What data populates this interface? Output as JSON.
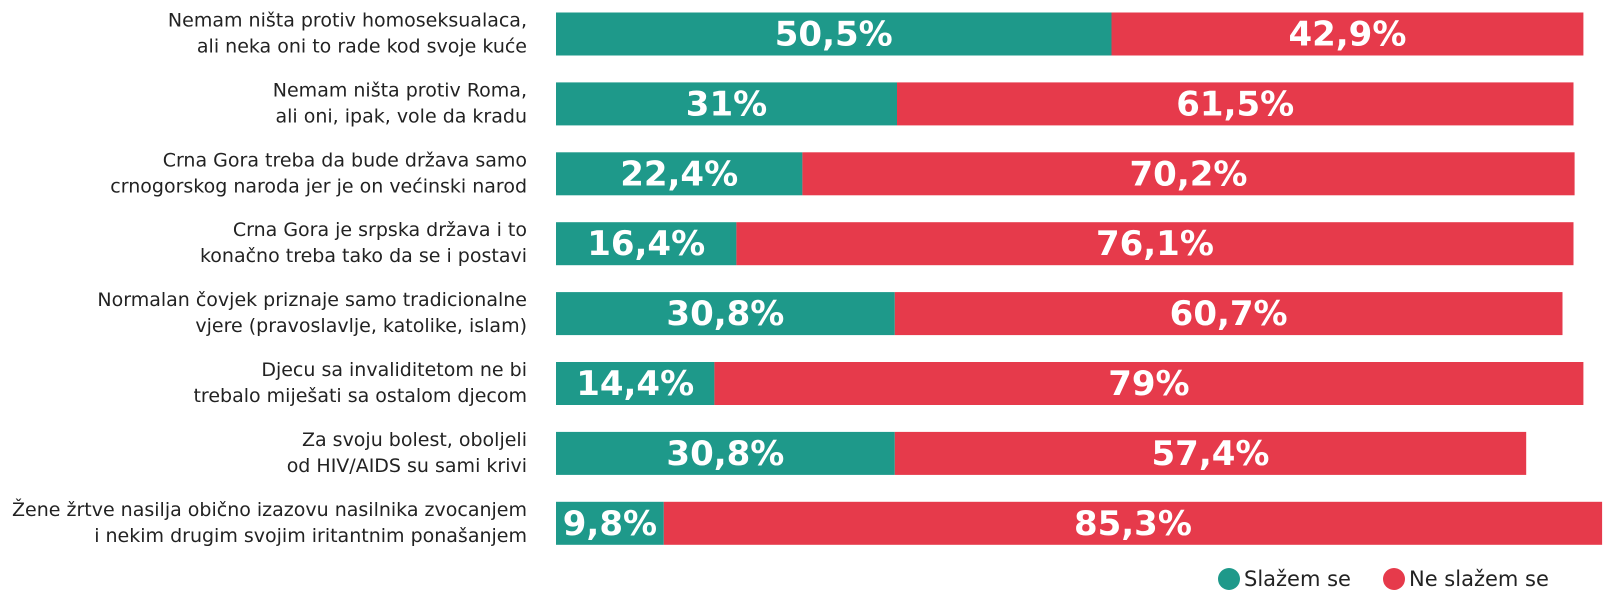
{
  "chart_data": {
    "type": "stacked-bar-horizontal",
    "categories": [
      [
        "Nemam ništa protiv homoseksualaca,",
        "ali neka oni to rade kod svoje kuće"
      ],
      [
        "Nemam ništa protiv Roma,",
        "ali oni, ipak, vole da kradu"
      ],
      [
        "Crna Gora treba da bude država samo",
        "crnogorskog naroda jer je on većinski narod"
      ],
      [
        "Crna Gora je srpska država i to",
        "konačno treba tako da se i postavi"
      ],
      [
        "Normalan čovjek priznaje samo tradicionalne",
        "vjere (pravoslavlje, katolike, islam)"
      ],
      [
        "Djecu sa invaliditetom ne bi",
        "trebalo miješati sa ostalom djecom"
      ],
      [
        "Za svoju bolest, oboljeli",
        "od HIV/AIDS su sami krivi"
      ],
      [
        "Žene žrtve nasilja obično izazovu nasilnika zvocanjem",
        "i nekim drugim svojim iritantnim ponašanjem"
      ]
    ],
    "series": [
      {
        "name": "Slažem se",
        "color": "#1e998a",
        "values": [
          50.5,
          31,
          22.4,
          16.4,
          30.8,
          14.4,
          30.8,
          9.8
        ],
        "value_labels": [
          "50,5%",
          "31%",
          "22,4%",
          "16,4%",
          "30,8%",
          "14,4%",
          "30,8%",
          "9,8%"
        ]
      },
      {
        "name": "Ne slažem se",
        "color": "#e63a4b",
        "values": [
          42.9,
          61.5,
          70.2,
          76.1,
          60.7,
          79,
          57.4,
          85.3
        ],
        "value_labels": [
          "42,9%",
          "61,5%",
          "70,2%",
          "76,1%",
          "60,7%",
          "79%",
          "57,4%",
          "85,3%"
        ]
      }
    ],
    "legend": "bottom-right"
  }
}
